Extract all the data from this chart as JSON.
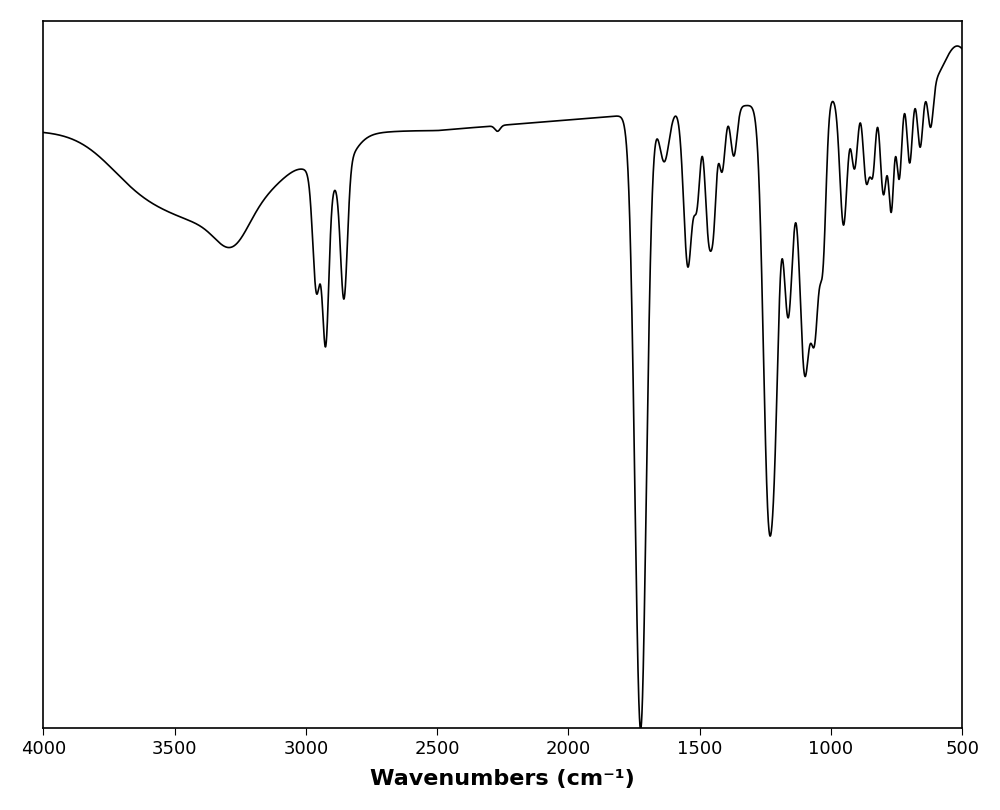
{
  "xlabel": "Wavenumbers (cm⁻¹)",
  "xlabel_fontsize": 16,
  "tick_fontsize": 13,
  "line_color": "#000000",
  "line_width": 1.2,
  "bg_color": "#ffffff",
  "xlim": [
    4000,
    500
  ],
  "ylim": [
    0.0,
    1.0
  ],
  "xticks": [
    4000,
    3500,
    3000,
    2500,
    2000,
    1500,
    1000,
    500
  ],
  "figsize": [
    10.0,
    8.1
  ],
  "dpi": 100
}
